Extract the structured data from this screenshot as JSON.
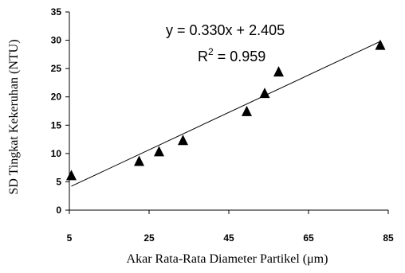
{
  "chart_data": {
    "type": "scatter",
    "xlabel": "Akar Rata-Rata Diameter Partikel (μm)",
    "ylabel": "SD Tingkat Kekeruhan (NTU)",
    "xlim": [
      5,
      85
    ],
    "ylim": [
      0,
      35
    ],
    "x_ticks": [
      "5",
      "25",
      "45",
      "65",
      "85"
    ],
    "y_ticks": [
      "0",
      "5",
      "10",
      "15",
      "20",
      "25",
      "30",
      "35"
    ],
    "series": [
      {
        "marker": "triangle",
        "color": "#000000",
        "points": [
          {
            "x": 5.5,
            "y": 6.0
          },
          {
            "x": 22.5,
            "y": 8.5
          },
          {
            "x": 27.5,
            "y": 10.2
          },
          {
            "x": 33.5,
            "y": 12.2
          },
          {
            "x": 49.5,
            "y": 17.3
          },
          {
            "x": 54.0,
            "y": 20.5
          },
          {
            "x": 57.5,
            "y": 24.3
          },
          {
            "x": 83.0,
            "y": 29.0
          }
        ]
      }
    ],
    "trendline": {
      "slope": 0.33,
      "intercept": 2.405,
      "x_start": 5.5,
      "x_end": 83.0
    },
    "annotations": {
      "equation": "y = 0.330x + 2.405",
      "r2_prefix": "R",
      "r2_sup": "2",
      "r2_suffix": " = 0.959"
    },
    "grid": false,
    "legend": "none"
  }
}
